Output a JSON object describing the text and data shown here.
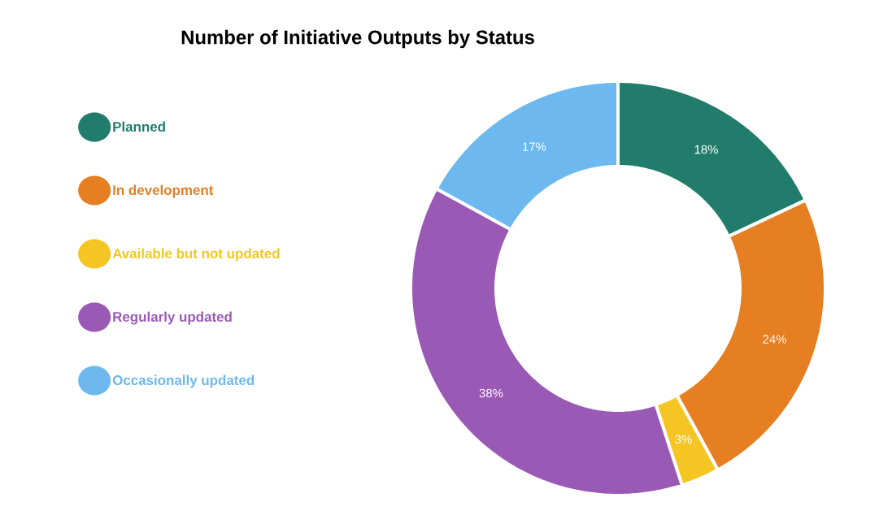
{
  "chart_data": {
    "type": "donut",
    "title": "Number of Initiative Outputs by Status",
    "categories": [
      "Planned",
      "In development",
      "Available but not updated",
      "Regularly updated",
      "Occasionally updated"
    ],
    "values": [
      18,
      24,
      3,
      38,
      17
    ],
    "value_labels": [
      "18%",
      "24%",
      "3%",
      "38%",
      "17%"
    ],
    "colors": [
      "#217c6b",
      "#e67e22",
      "#f5c623",
      "#9b59b6",
      "#6cb8ef"
    ],
    "legend": "left"
  }
}
